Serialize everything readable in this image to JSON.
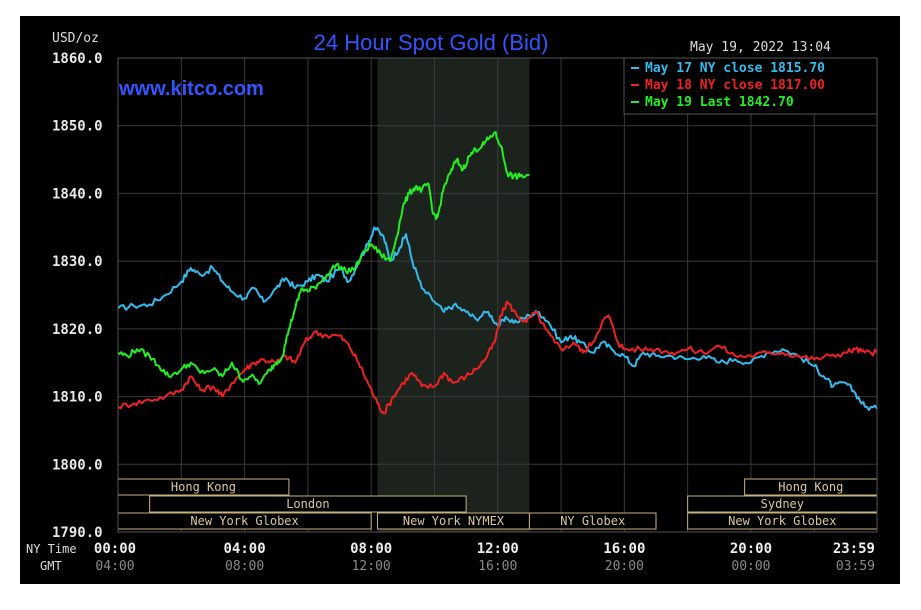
{
  "chart_data": {
    "type": "line",
    "title": "24 Hour Spot Gold (Bid)",
    "unit_label": "USD/oz",
    "timestamp": "May 19, 2022 13:04",
    "watermark": "www.kitco.com",
    "ylim": [
      1790,
      1860
    ],
    "yticks": [
      "1790.0",
      "1800.0",
      "1810.0",
      "1820.0",
      "1830.0",
      "1840.0",
      "1850.0",
      "1860.0"
    ],
    "x_row1_label": "NY Time",
    "x_row2_label": "GMT",
    "x_ticks_ny": [
      "00:00",
      "04:00",
      "08:00",
      "12:00",
      "16:00",
      "20:00",
      "23:59"
    ],
    "x_ticks_gmt": [
      "04:00",
      "08:00",
      "12:00",
      "16:00",
      "20:00",
      "00:00",
      "03:59"
    ],
    "x_tick_hours": [
      0,
      4,
      8,
      12,
      16,
      20,
      23.983
    ],
    "sessions": [
      {
        "label": "Hong Kong",
        "row": 0,
        "start": 0,
        "end": 5.4
      },
      {
        "label": "Hong Kong",
        "row": 0,
        "start": 19.8,
        "end": 23.983
      },
      {
        "label": "London",
        "row": 1,
        "start": 1.0,
        "end": 11.0
      },
      {
        "label": "Sydney",
        "row": 1,
        "start": 18.0,
        "end": 23.983
      },
      {
        "label": "New York Globex",
        "row": 2,
        "start": 0,
        "end": 8.0
      },
      {
        "label": "New York NYMEX",
        "row": 2,
        "start": 8.2,
        "end": 13.0
      },
      {
        "label": "NY Globex",
        "row": 2,
        "start": 13.0,
        "end": 17.0
      },
      {
        "label": "New York Globex",
        "row": 2,
        "start": 18.0,
        "end": 23.983
      }
    ],
    "nymex_shade": [
      8.2,
      13.0
    ],
    "series": [
      {
        "name": "May 17 NY close 1815.70",
        "color": "#33bbee",
        "points": [
          [
            0,
            1823.0
          ],
          [
            0.5,
            1823.4
          ],
          [
            1.0,
            1823.6
          ],
          [
            1.5,
            1825.0
          ],
          [
            2.0,
            1827.0
          ],
          [
            2.3,
            1829.0
          ],
          [
            2.6,
            1828.0
          ],
          [
            3.0,
            1829.0
          ],
          [
            3.3,
            1827.0
          ],
          [
            3.6,
            1825.5
          ],
          [
            4.0,
            1824.5
          ],
          [
            4.3,
            1826.0
          ],
          [
            4.6,
            1824.0
          ],
          [
            5.0,
            1826.0
          ],
          [
            5.3,
            1827.5
          ],
          [
            5.6,
            1826.0
          ],
          [
            6.0,
            1827.0
          ],
          [
            6.3,
            1828.0
          ],
          [
            6.6,
            1827.0
          ],
          [
            7.0,
            1829.0
          ],
          [
            7.3,
            1827.0
          ],
          [
            7.6,
            1830.0
          ],
          [
            7.9,
            1832.5
          ],
          [
            8.1,
            1835.0
          ],
          [
            8.4,
            1833.5
          ],
          [
            8.6,
            1830.0
          ],
          [
            8.9,
            1832.0
          ],
          [
            9.1,
            1834.0
          ],
          [
            9.3,
            1830.0
          ],
          [
            9.6,
            1826.0
          ],
          [
            10.0,
            1824.0
          ],
          [
            10.3,
            1822.5
          ],
          [
            10.6,
            1823.5
          ],
          [
            11.0,
            1822.5
          ],
          [
            11.3,
            1821.5
          ],
          [
            11.7,
            1822.5
          ],
          [
            12.0,
            1820.5
          ],
          [
            12.3,
            1821.5
          ],
          [
            12.6,
            1821.0
          ],
          [
            13.0,
            1822.0
          ],
          [
            13.3,
            1822.5
          ],
          [
            13.6,
            1821.0
          ],
          [
            14.0,
            1818.0
          ],
          [
            14.3,
            1819.0
          ],
          [
            14.6,
            1818.0
          ],
          [
            15.0,
            1816.5
          ],
          [
            15.3,
            1818.0
          ],
          [
            15.6,
            1817.0
          ],
          [
            16.0,
            1816.0
          ],
          [
            16.3,
            1814.5
          ],
          [
            16.6,
            1816.5
          ],
          [
            17.0,
            1816.0
          ],
          [
            17.5,
            1816.0
          ],
          [
            18.0,
            1815.5
          ],
          [
            18.5,
            1816.0
          ],
          [
            19.0,
            1815.0
          ],
          [
            19.5,
            1815.5
          ],
          [
            20.0,
            1815.0
          ],
          [
            20.5,
            1816.5
          ],
          [
            21.0,
            1817.0
          ],
          [
            21.5,
            1816.0
          ],
          [
            22.0,
            1814.5
          ],
          [
            22.3,
            1813.0
          ],
          [
            22.6,
            1811.5
          ],
          [
            23.0,
            1812.0
          ],
          [
            23.3,
            1810.5
          ],
          [
            23.6,
            1808.5
          ],
          [
            23.983,
            1808.2
          ]
        ]
      },
      {
        "name": "May 18 NY close 1817.00",
        "color": "#ee2222",
        "points": [
          [
            0,
            1808.5
          ],
          [
            0.5,
            1809.0
          ],
          [
            1.0,
            1809.5
          ],
          [
            1.5,
            1810.0
          ],
          [
            2.0,
            1811.0
          ],
          [
            2.3,
            1813.0
          ],
          [
            2.6,
            1811.0
          ],
          [
            3.0,
            1811.5
          ],
          [
            3.3,
            1810.0
          ],
          [
            3.6,
            1812.0
          ],
          [
            4.0,
            1814.0
          ],
          [
            4.3,
            1815.0
          ],
          [
            4.6,
            1815.5
          ],
          [
            5.0,
            1815.0
          ],
          [
            5.3,
            1816.0
          ],
          [
            5.6,
            1815.0
          ],
          [
            5.9,
            1818.0
          ],
          [
            6.2,
            1819.5
          ],
          [
            6.6,
            1819.0
          ],
          [
            7.0,
            1819.0
          ],
          [
            7.3,
            1817.5
          ],
          [
            7.6,
            1815.0
          ],
          [
            7.9,
            1812.0
          ],
          [
            8.2,
            1809.0
          ],
          [
            8.4,
            1807.5
          ],
          [
            8.7,
            1810.0
          ],
          [
            9.0,
            1812.0
          ],
          [
            9.3,
            1813.5
          ],
          [
            9.6,
            1811.5
          ],
          [
            10.0,
            1811.5
          ],
          [
            10.3,
            1813.5
          ],
          [
            10.6,
            1812.0
          ],
          [
            11.0,
            1813.0
          ],
          [
            11.3,
            1814.0
          ],
          [
            11.6,
            1815.5
          ],
          [
            11.9,
            1818.0
          ],
          [
            12.1,
            1822.0
          ],
          [
            12.3,
            1824.0
          ],
          [
            12.6,
            1822.0
          ],
          [
            12.9,
            1821.0
          ],
          [
            13.2,
            1822.5
          ],
          [
            13.5,
            1820.0
          ],
          [
            13.8,
            1818.0
          ],
          [
            14.1,
            1817.0
          ],
          [
            14.4,
            1818.0
          ],
          [
            14.7,
            1816.5
          ],
          [
            15.0,
            1818.0
          ],
          [
            15.3,
            1821.0
          ],
          [
            15.5,
            1822.0
          ],
          [
            15.8,
            1818.0
          ],
          [
            16.0,
            1817.0
          ],
          [
            16.5,
            1817.0
          ],
          [
            17.0,
            1817.0
          ],
          [
            17.5,
            1816.5
          ],
          [
            18.0,
            1817.0
          ],
          [
            18.5,
            1816.5
          ],
          [
            19.0,
            1817.5
          ],
          [
            19.5,
            1816.0
          ],
          [
            20.0,
            1816.0
          ],
          [
            20.5,
            1816.5
          ],
          [
            21.0,
            1816.5
          ],
          [
            21.5,
            1816.0
          ],
          [
            22.0,
            1815.5
          ],
          [
            22.5,
            1816.0
          ],
          [
            23.0,
            1816.5
          ],
          [
            23.3,
            1817.0
          ],
          [
            23.6,
            1816.5
          ],
          [
            23.983,
            1816.5
          ]
        ]
      },
      {
        "name": "May 19 Last 1842.70",
        "color": "#22ee22",
        "points": [
          [
            0,
            1816.5
          ],
          [
            0.3,
            1816.0
          ],
          [
            0.6,
            1817.0
          ],
          [
            1.0,
            1816.0
          ],
          [
            1.3,
            1814.5
          ],
          [
            1.6,
            1813.0
          ],
          [
            2.0,
            1814.0
          ],
          [
            2.3,
            1815.0
          ],
          [
            2.6,
            1813.5
          ],
          [
            3.0,
            1814.0
          ],
          [
            3.3,
            1813.0
          ],
          [
            3.6,
            1815.0
          ],
          [
            3.9,
            1812.5
          ],
          [
            4.2,
            1813.0
          ],
          [
            4.5,
            1812.0
          ],
          [
            4.8,
            1814.0
          ],
          [
            5.0,
            1815.0
          ],
          [
            5.2,
            1816.0
          ],
          [
            5.4,
            1820.0
          ],
          [
            5.6,
            1823.0
          ],
          [
            5.8,
            1826.0
          ],
          [
            6.0,
            1825.5
          ],
          [
            6.3,
            1826.5
          ],
          [
            6.6,
            1828.0
          ],
          [
            6.9,
            1829.5
          ],
          [
            7.2,
            1828.5
          ],
          [
            7.5,
            1829.0
          ],
          [
            7.8,
            1831.5
          ],
          [
            8.0,
            1832.5
          ],
          [
            8.3,
            1831.0
          ],
          [
            8.6,
            1830.0
          ],
          [
            8.8,
            1833.5
          ],
          [
            9.0,
            1838.0
          ],
          [
            9.2,
            1840.0
          ],
          [
            9.4,
            1841.0
          ],
          [
            9.6,
            1840.5
          ],
          [
            9.8,
            1841.5
          ],
          [
            9.95,
            1837.0
          ],
          [
            10.1,
            1836.5
          ],
          [
            10.3,
            1841.0
          ],
          [
            10.5,
            1843.0
          ],
          [
            10.7,
            1845.0
          ],
          [
            10.9,
            1843.5
          ],
          [
            11.1,
            1845.5
          ],
          [
            11.3,
            1846.5
          ],
          [
            11.5,
            1847.0
          ],
          [
            11.7,
            1848.0
          ],
          [
            11.9,
            1849.0
          ],
          [
            12.1,
            1847.0
          ],
          [
            12.3,
            1843.0
          ],
          [
            12.5,
            1842.5
          ],
          [
            12.7,
            1842.5
          ],
          [
            13.0,
            1842.7
          ]
        ]
      }
    ]
  }
}
